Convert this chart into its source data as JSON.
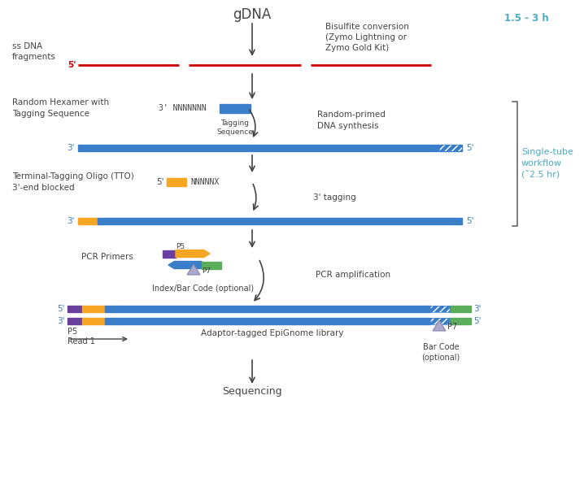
{
  "bg_color": "#ffffff",
  "colors": {
    "blue": "#3A7DC9",
    "orange": "#F6A623",
    "purple": "#6B3FA0",
    "green": "#5BAD5B",
    "red": "#CC0000",
    "text_dark": "#444444",
    "text_blue": "#4BACC6",
    "tri_face": "#AAAACC",
    "tri_edge": "#8888AA",
    "bracket": "#666666",
    "hatch_blue": "#3A7DC9"
  },
  "title": "gDNA",
  "bisulfite_text": "Bisulfite conversion\n(Zymo Lightning or\nZymo Gold Kit)",
  "bisulfite_time": "1.5 - 3 h",
  "ssdna_label": "ss DNA\nfragments",
  "hexamer_label": "Random Hexamer with\nTagging Sequence",
  "tagging_seq_label": "Tagging\nSequence",
  "random_primed_label": "Random-primed\nDNA synthesis",
  "tto_label": "Terminal-Tagging Oligo (TTO)\n3'-end blocked",
  "tagging_3prime": "3' tagging",
  "pcr_primers_label": "PCR Primers",
  "p5_label": "P5",
  "p7_label": "P7",
  "pcr_amp_label": "PCR amplification",
  "index_label": "Index/Bar Code (optional)",
  "library_label": "Adaptor-tagged EpiGnome library",
  "read1_label": "Read 1",
  "p5_bottom_label": "P5",
  "p7_bottom_label": "P7",
  "barcode_label": "Bar Code\n(optional)",
  "sequencing_label": "Sequencing",
  "single_tube_label": "Single-tube\nworkflow\n(˜2.5 hr)"
}
